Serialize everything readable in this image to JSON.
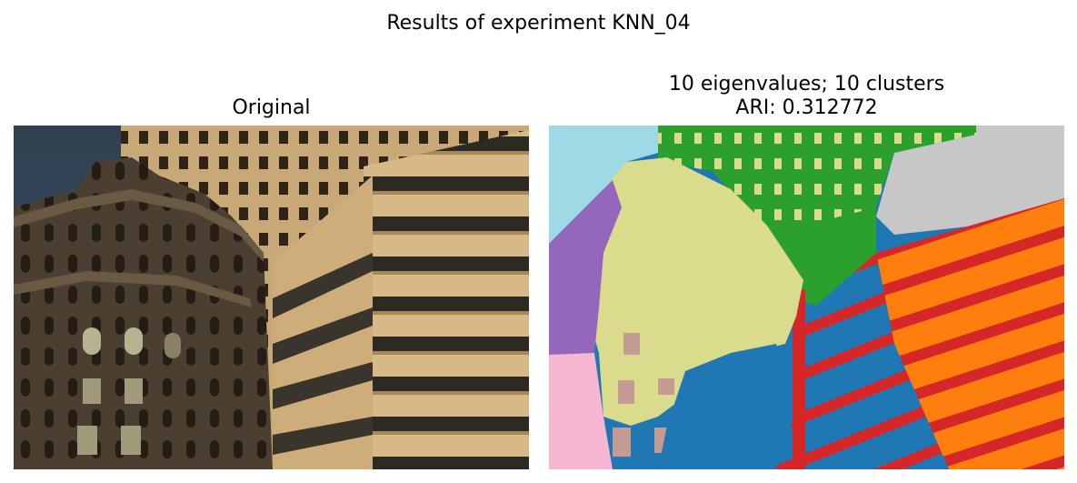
{
  "figure": {
    "suptitle": "Results of experiment KNN_04"
  },
  "panels": {
    "left_title": "Original",
    "right_title_line1": "10 eigenvalues; 10 clusters",
    "right_title_line2": "ARI: 0.312772"
  },
  "chart_data": [
    {
      "type": "image",
      "title": "Original",
      "content": "photograph of buildings"
    },
    {
      "type": "heatmap",
      "title": "10 eigenvalues; 10 clusters\nARI: 0.312772",
      "n_eigenvalues": 10,
      "n_clusters": 10,
      "ari": 0.312772,
      "cluster_colors": [
        "#1f77b4",
        "#ff7f0e",
        "#2ca02c",
        "#d62728",
        "#9467bd",
        "#c49c94",
        "#f7b6d2",
        "#c7c7c7",
        "#dbdb8d",
        "#9edae5"
      ]
    }
  ]
}
